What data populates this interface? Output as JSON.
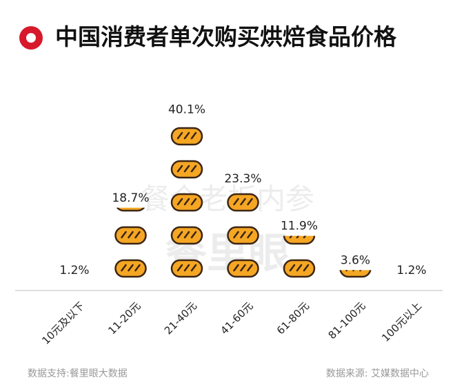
{
  "chart_data": {
    "type": "pictogram",
    "title": "中国消费者单次购买烘焙食品价格",
    "categories": [
      "10元及以下",
      "11-20元",
      "21-40元",
      "41-60元",
      "61-80元",
      "81-100元",
      "100元以上"
    ],
    "values": [
      1.2,
      18.7,
      40.1,
      23.3,
      11.9,
      3.6,
      1.2
    ],
    "value_labels": [
      "1.2%",
      "18.7%",
      "40.1%",
      "23.3%",
      "11.9%",
      "3.6%",
      "1.2%"
    ],
    "color": "#f5a623",
    "watermark": [
      "餐企老板内参",
      "餐里眼"
    ],
    "footer_left": "数据支持:餐里眼大数据",
    "footer_right": "数据来源: 艾媒数据中心"
  }
}
